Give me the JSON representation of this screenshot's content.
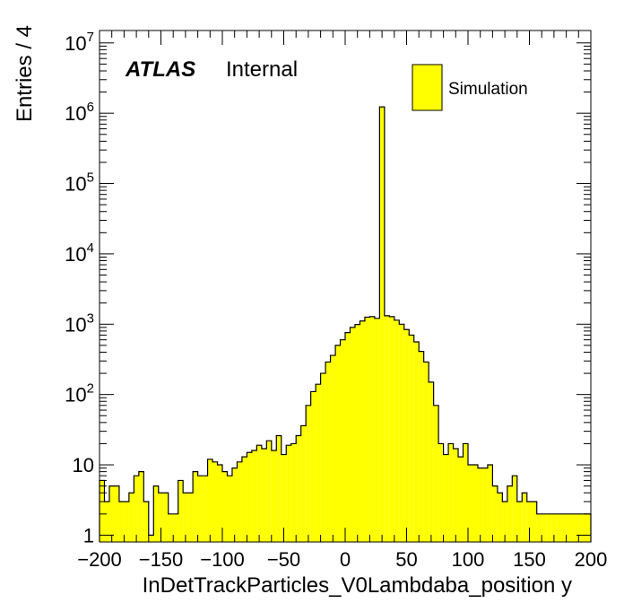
{
  "chart_data": {
    "type": "bar",
    "xlabel": "InDetTrackParticles_V0Lambdaba_position y",
    "ylabel": "Entries / 4",
    "xlim": [
      -200,
      200
    ],
    "ylim": [
      0.8,
      15000000
    ],
    "log_y": true,
    "bin_width": 4,
    "x_ticks": [
      -200,
      -150,
      -100,
      -50,
      0,
      50,
      100,
      150,
      200
    ],
    "x_tick_labels": [
      "−200",
      "−150",
      "−100",
      "−50",
      "0",
      "50",
      "100",
      "150",
      "200"
    ],
    "y_tick_labels": [
      {
        "value": 1,
        "base": "1",
        "exp": ""
      },
      {
        "value": 10,
        "base": "10",
        "exp": ""
      },
      {
        "value": 100,
        "base": "10",
        "exp": "2"
      },
      {
        "value": 1000,
        "base": "10",
        "exp": "3"
      },
      {
        "value": 10000,
        "base": "10",
        "exp": "4"
      },
      {
        "value": 100000,
        "base": "10",
        "exp": "5"
      },
      {
        "value": 1000000,
        "base": "10",
        "exp": "6"
      },
      {
        "value": 10000000,
        "base": "10",
        "exp": "7"
      }
    ],
    "annotation": {
      "experiment": "ATLAS",
      "status": "Internal"
    },
    "series": [
      {
        "name": "Simulation",
        "fill": "#ffff00",
        "stroke": "#000000",
        "values": [
          6,
          3,
          5,
          5,
          3,
          3,
          4,
          7,
          8,
          3,
          1,
          5,
          4,
          4,
          2,
          2,
          6,
          4,
          4,
          8,
          7,
          7,
          12,
          11,
          10,
          8,
          7,
          9,
          11,
          13,
          15,
          16,
          19,
          17,
          22,
          16,
          26,
          14,
          19,
          20,
          26,
          36,
          70,
          110,
          140,
          200,
          290,
          360,
          500,
          600,
          760,
          900,
          990,
          1110,
          1260,
          1280,
          1210,
          1230000,
          1320,
          1280,
          1140,
          1000,
          840,
          700,
          560,
          410,
          290,
          150,
          70,
          20,
          14,
          20,
          17,
          13,
          20,
          10,
          10,
          9,
          9,
          10,
          5,
          4,
          3,
          5,
          7,
          3,
          4,
          3,
          3,
          2,
          2,
          2,
          2,
          2,
          2,
          2,
          2,
          2,
          2,
          2
        ]
      }
    ]
  }
}
